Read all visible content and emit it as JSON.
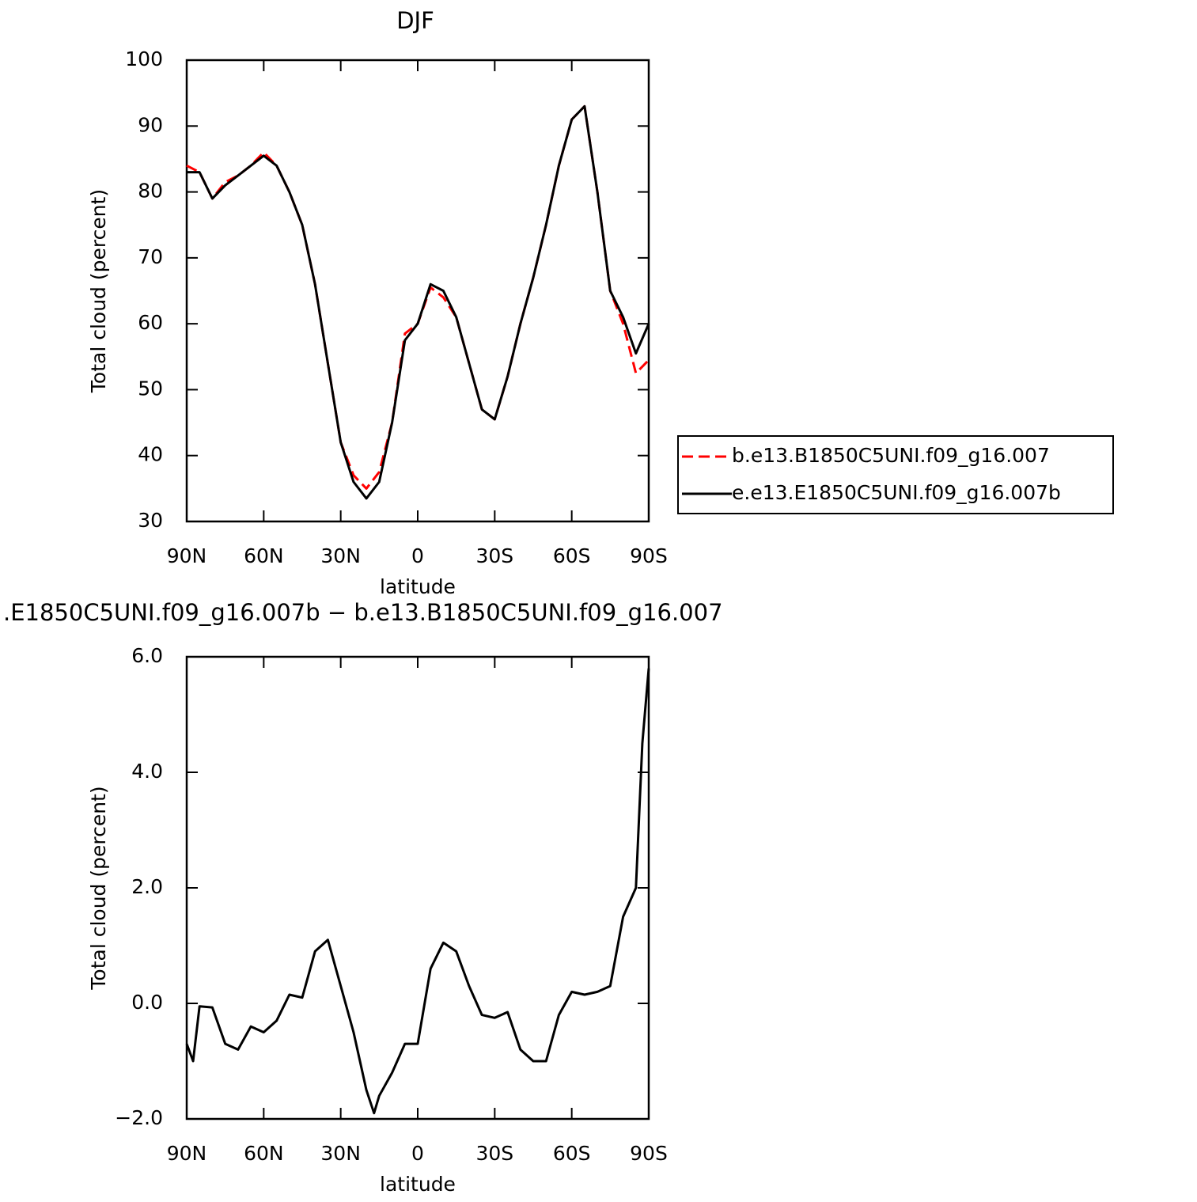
{
  "chart_data": [
    {
      "type": "line",
      "title": "DJF",
      "xlabel": "latitude",
      "ylabel": "Total cloud (percent)",
      "x": [
        90,
        85,
        80,
        75,
        70,
        65,
        60,
        55,
        50,
        45,
        40,
        35,
        30,
        25,
        20,
        15,
        10,
        5,
        0,
        -5,
        -10,
        -15,
        -20,
        -25,
        -30,
        -35,
        -40,
        -45,
        -50,
        -55,
        -60,
        -65,
        -70,
        -75,
        -80,
        -85,
        -90
      ],
      "series": [
        {
          "name": "b.e13.B1850C5UNI.f09_g16.007",
          "color": "#ff0000",
          "style": "dashed",
          "values": [
            84,
            83,
            79,
            81.5,
            82.5,
            84,
            86,
            84,
            80,
            75,
            66,
            54,
            42,
            37,
            35,
            37.5,
            45,
            58.5,
            60,
            65.5,
            64,
            61,
            54,
            47,
            45.5,
            52,
            60,
            67,
            75,
            84,
            91,
            93,
            80,
            65,
            60,
            52.5,
            54.5
          ]
        },
        {
          "name": "e.e13.E1850C5UNI.f09_g16.007b",
          "color": "#000000",
          "style": "solid",
          "values": [
            83,
            83,
            79,
            81,
            82.5,
            84,
            85.5,
            84,
            80,
            75,
            66,
            54,
            42,
            36,
            33.5,
            36,
            45,
            57.5,
            60,
            66,
            65,
            61,
            54,
            47,
            45.5,
            52,
            60,
            67,
            75,
            84,
            91,
            93,
            80,
            65,
            61,
            55.5,
            60
          ]
        }
      ],
      "xlim": [
        90,
        -90
      ],
      "xticks": [
        {
          "value": 90,
          "label": "90N"
        },
        {
          "value": 60,
          "label": "60N"
        },
        {
          "value": 30,
          "label": "30N"
        },
        0,
        {
          "value": -30,
          "label": "30S"
        },
        {
          "value": -60,
          "label": "60S"
        },
        {
          "value": -90,
          "label": "90S"
        }
      ],
      "ylim": [
        30,
        100
      ],
      "yticks": [
        30,
        40,
        50,
        60,
        70,
        80,
        90,
        100
      ],
      "legend": "right"
    },
    {
      "type": "line",
      "title": ".E1850C5UNI.f09_g16.007b − b.e13.B1850C5UNI.f09_g16.007",
      "xlabel": "latitude",
      "ylabel": "Total cloud (percent)",
      "x": [
        90,
        87.5,
        85,
        80,
        75,
        70,
        65,
        60,
        55,
        50,
        45,
        40,
        35,
        30,
        25,
        20,
        17,
        15,
        10,
        5,
        0,
        -5,
        -10,
        -15,
        -20,
        -25,
        -30,
        -35,
        -40,
        -45,
        -50,
        -55,
        -60,
        -65,
        -70,
        -75,
        -80,
        -85,
        -87.5,
        -90
      ],
      "values": [
        -0.7,
        -1.0,
        -0.05,
        -0.07,
        -0.7,
        -0.8,
        -0.4,
        -0.5,
        -0.3,
        0.15,
        0.1,
        0.9,
        1.1,
        0.3,
        -0.5,
        -1.5,
        -1.9,
        -1.6,
        -1.2,
        -0.7,
        -0.7,
        0.6,
        1.05,
        0.9,
        0.3,
        -0.2,
        -0.25,
        -0.15,
        -0.8,
        -1.0,
        -1.0,
        -0.2,
        0.2,
        0.15,
        0.2,
        0.3,
        1.5,
        2.0,
        4.5,
        5.8
      ],
      "color": "#000000",
      "xlim": [
        90,
        -90
      ],
      "xticks": [
        {
          "value": 90,
          "label": "90N"
        },
        {
          "value": 60,
          "label": "60N"
        },
        {
          "value": 30,
          "label": "30N"
        },
        0,
        {
          "value": -30,
          "label": "30S"
        },
        {
          "value": -60,
          "label": "60S"
        },
        {
          "value": -90,
          "label": "90S"
        }
      ],
      "ylim": [
        -2,
        6
      ],
      "yticks": [
        {
          "value": -2,
          "label": "−2.0"
        },
        {
          "value": 0,
          "label": "0.0"
        },
        {
          "value": 2,
          "label": "2.0"
        },
        {
          "value": 4,
          "label": "4.0"
        },
        {
          "value": 6,
          "label": "6.0"
        }
      ]
    }
  ]
}
